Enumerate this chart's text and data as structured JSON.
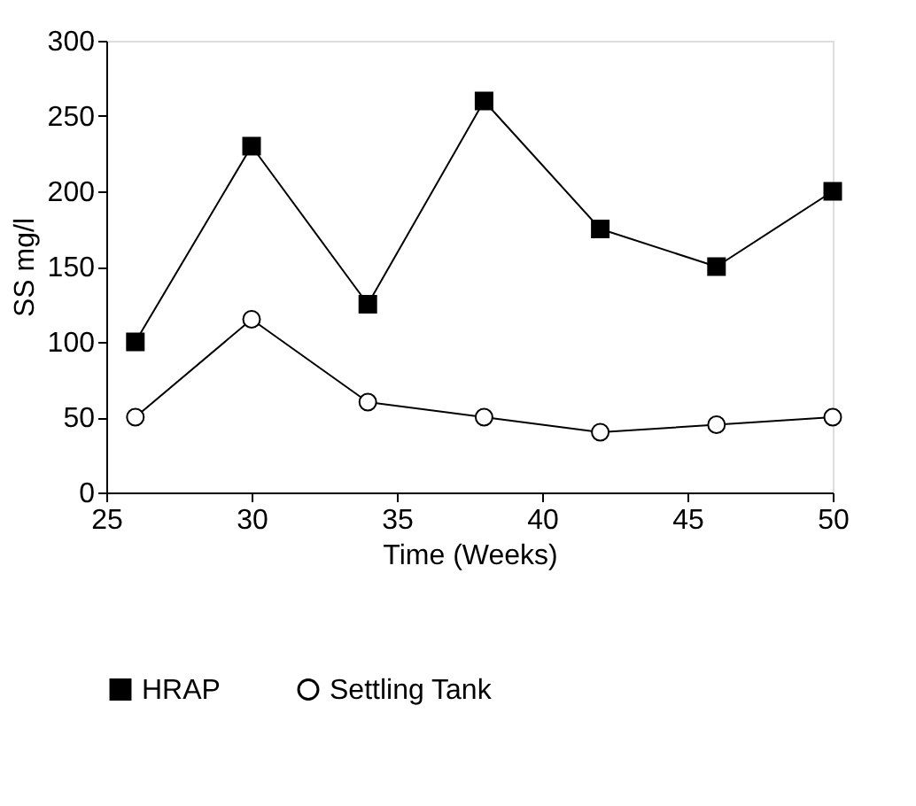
{
  "chart_data": {
    "type": "line",
    "xlabel": "Time (Weeks)",
    "ylabel": "SS mg/l",
    "x": [
      26,
      30,
      34,
      38,
      42,
      46,
      50
    ],
    "series": [
      {
        "name": "HRAP",
        "color": "#000000",
        "marker": "square",
        "values": [
          100,
          230,
          125,
          260,
          175,
          150,
          200
        ]
      },
      {
        "name": "Settling Tank",
        "color": "#000000",
        "marker": "circle",
        "values": [
          50,
          115,
          60,
          50,
          40,
          45,
          50
        ]
      }
    ],
    "xlim": [
      25,
      50
    ],
    "xticks": [
      25,
      30,
      35,
      40,
      45,
      50
    ],
    "ylim": [
      0,
      300
    ],
    "yticks": [
      0,
      50,
      100,
      150,
      200,
      250,
      300
    ],
    "grid": false,
    "legend": "bottom",
    "line_style": "solid"
  }
}
